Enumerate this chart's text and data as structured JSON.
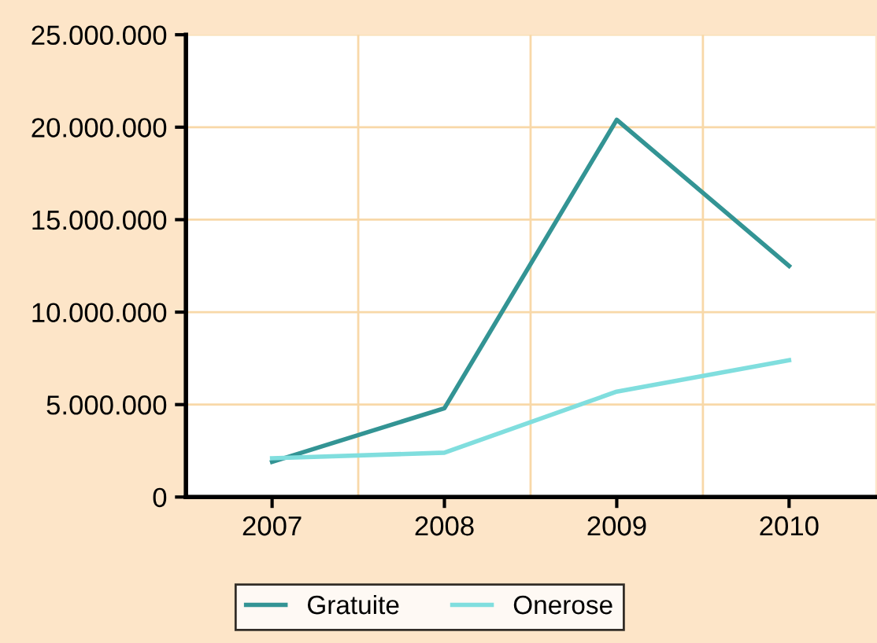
{
  "chart_data": {
    "type": "line",
    "categories": [
      "2007",
      "2008",
      "2009",
      "2010"
    ],
    "series": [
      {
        "name": "Gratuite",
        "color": "#339494",
        "values": [
          1900000,
          4800000,
          20400000,
          12500000
        ]
      },
      {
        "name": "Onerose",
        "color": "#80dede",
        "values": [
          2100000,
          2400000,
          5700000,
          7400000
        ]
      }
    ],
    "ylim": [
      0,
      25000000
    ],
    "yticks": [
      0,
      {
        "value": 5000000,
        "label": "5.000.000"
      },
      {
        "value": 10000000,
        "label": "10.000.000"
      },
      {
        "value": 15000000,
        "label": "15.000.000"
      },
      {
        "value": 20000000,
        "label": "20.000.000"
      },
      {
        "value": 25000000,
        "label": "25.000.000"
      }
    ],
    "grid": true,
    "legend": "bottom",
    "marker": "none",
    "line_style": "solid"
  }
}
